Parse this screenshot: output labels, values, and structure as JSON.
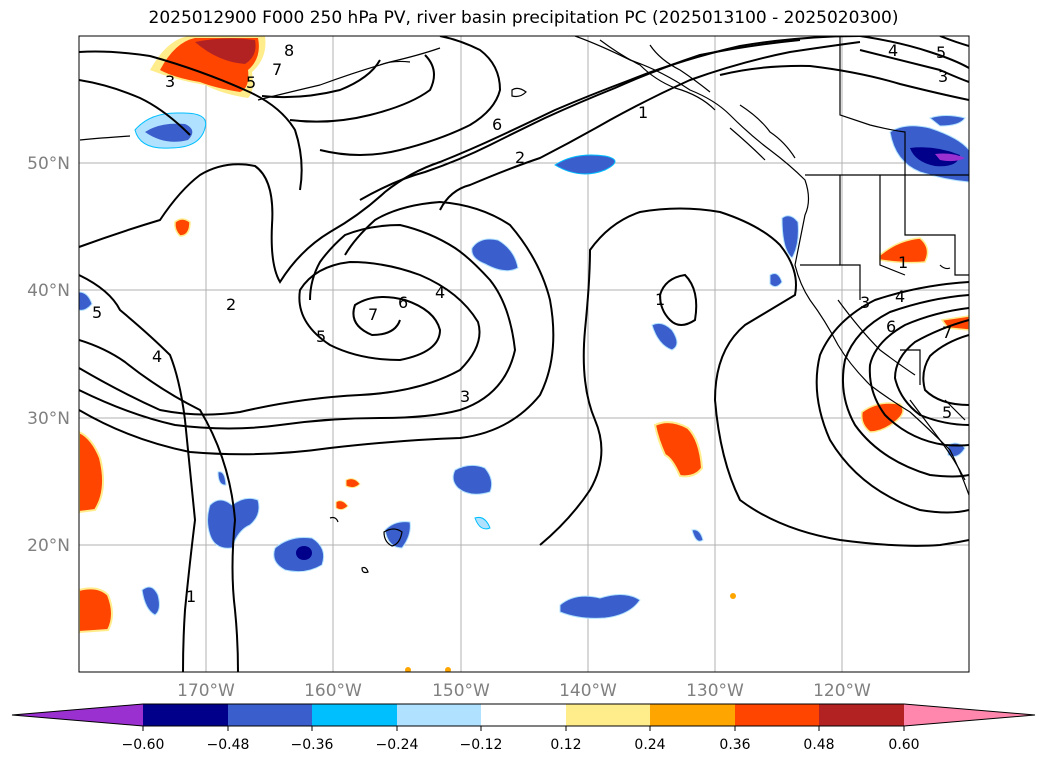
{
  "title": "2025012900 F000 250 hPa PV, river basin precipitation PC (2025013100 - 2025020300)",
  "map": {
    "lat_labels": [
      "50°N",
      "40°N",
      "30°N",
      "20°N"
    ],
    "lon_labels": [
      "170°W",
      "160°W",
      "150°W",
      "140°W",
      "130°W",
      "120°W"
    ],
    "contour_labels": [
      "1",
      "2",
      "3",
      "4",
      "5",
      "6",
      "7",
      "8"
    ],
    "line_color": "#000000",
    "grid_color": "#b0b0b0"
  },
  "colorbar": {
    "ticks": [
      "−0.60",
      "−0.48",
      "−0.36",
      "−0.24",
      "−0.12",
      "0.12",
      "0.24",
      "0.36",
      "0.48",
      "0.60"
    ],
    "colors": [
      "#9b30d0",
      "#00008b",
      "#3a5fcd",
      "#00bfff",
      "#b0e2ff",
      "#ffffff",
      "#ffec8b",
      "#ffa500",
      "#ff4500",
      "#b22222",
      "#ff86ac"
    ]
  }
}
